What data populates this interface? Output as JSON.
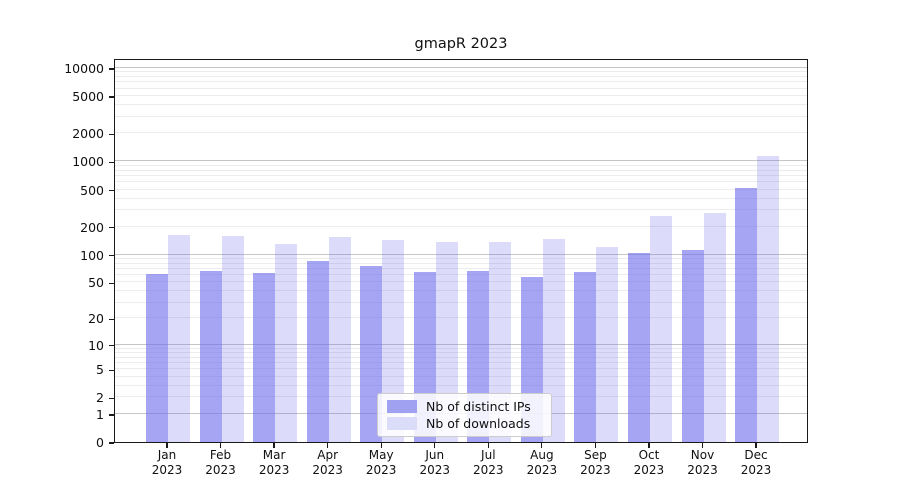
{
  "chart_data": {
    "type": "bar",
    "title": "gmapR 2023",
    "categories": [
      "Jan 2023",
      "Feb 2023",
      "Mar 2023",
      "Apr 2023",
      "May 2023",
      "Jun 2023",
      "Jul 2023",
      "Aug 2023",
      "Sep 2023",
      "Oct 2023",
      "Nov 2023",
      "Dec 2023"
    ],
    "series": [
      {
        "name": "Nb of distinct IPs",
        "color": "rgba(110,110,235,0.62)",
        "color_hex": "#a1a1f2",
        "values": [
          62,
          66,
          63,
          85,
          75,
          65,
          66,
          57,
          65,
          104,
          112,
          515
        ]
      },
      {
        "name": "Nb of downloads",
        "color": "rgba(110,110,235,0.24)",
        "color_hex": "#dbdbfa",
        "values": [
          163,
          160,
          130,
          155,
          144,
          137,
          137,
          147,
          122,
          260,
          280,
          1145
        ]
      }
    ],
    "xlabel": "",
    "ylabel": "",
    "yscale": "log1p",
    "y_ticks": [
      0,
      1,
      2,
      5,
      10,
      20,
      50,
      100,
      200,
      500,
      1000,
      2000,
      5000,
      10000
    ],
    "ylim": [
      0,
      12800
    ],
    "grid": true,
    "legend_position": "lower center",
    "colors": {
      "grid_major": "#c6c6c6",
      "grid_minor": "#ececec",
      "axis_frame": "#1a1a1a",
      "background": "#ffffff"
    }
  }
}
